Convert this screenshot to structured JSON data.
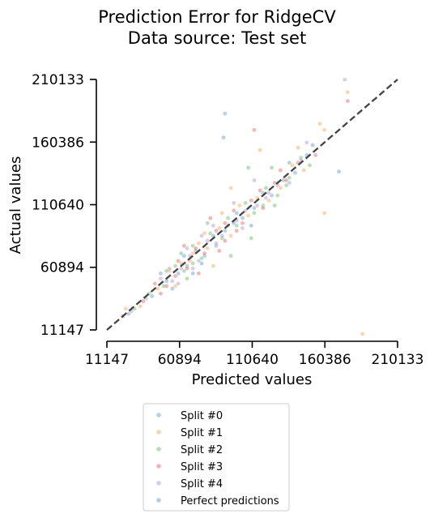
{
  "chart_data": {
    "type": "scatter",
    "title": [
      "Prediction Error for RidgeCV",
      "Data source: Test set"
    ],
    "xlabel": "Predicted values",
    "ylabel": "Actual values",
    "xlim": [
      11147,
      210133
    ],
    "ylim": [
      11147,
      210133
    ],
    "xticks": [
      "11147",
      "60894",
      "110640",
      "160386",
      "210133"
    ],
    "yticks": [
      "11147",
      "60894",
      "110640",
      "160386",
      "210133"
    ],
    "grid": false,
    "legend_position": "below",
    "series": [
      {
        "name": "Split #0",
        "color": "#1f77b4",
        "points": [
          [
            26000,
            24000
          ],
          [
            42000,
            38000
          ],
          [
            52000,
            50000
          ],
          [
            60000,
            56000
          ],
          [
            66000,
            62000
          ],
          [
            72000,
            74000
          ],
          [
            78000,
            70000
          ],
          [
            84000,
            86000
          ],
          [
            92000,
            90000
          ],
          [
            98000,
            96000
          ],
          [
            104000,
            100000
          ],
          [
            112000,
            108000
          ],
          [
            118000,
            120000
          ],
          [
            124000,
            118000
          ],
          [
            132000,
            130000
          ],
          [
            140000,
            136000
          ],
          [
            148000,
            150000
          ],
          [
            92000,
            183000
          ],
          [
            91000,
            164000
          ],
          [
            152000,
            158000
          ],
          [
            170000,
            137000
          ],
          [
            56000,
            44000
          ],
          [
            64000,
            70000
          ],
          [
            70000,
            56000
          ],
          [
            86000,
            78000
          ],
          [
            100000,
            104000
          ],
          [
            76000,
            64000
          ],
          [
            48000,
            56000
          ],
          [
            110000,
            94000
          ],
          [
            136000,
            144000
          ]
        ]
      },
      {
        "name": "Split #1",
        "color": "#ff7f0e",
        "points": [
          [
            24000,
            28000
          ],
          [
            34000,
            30000
          ],
          [
            46000,
            44000
          ],
          [
            54000,
            58000
          ],
          [
            62000,
            64000
          ],
          [
            68000,
            66000
          ],
          [
            74000,
            80000
          ],
          [
            80000,
            76000
          ],
          [
            88000,
            92000
          ],
          [
            96000,
            86000
          ],
          [
            102000,
            110000
          ],
          [
            108000,
            102000
          ],
          [
            114000,
            116000
          ],
          [
            122000,
            114000
          ],
          [
            130000,
            124000
          ],
          [
            138000,
            142000
          ],
          [
            146000,
            138000
          ],
          [
            160000,
            170000
          ],
          [
            176000,
            200000
          ],
          [
            157000,
            175000
          ],
          [
            160000,
            104000
          ],
          [
            186000,
            8000
          ],
          [
            90000,
            104000
          ],
          [
            116000,
            154000
          ],
          [
            58000,
            46000
          ],
          [
            70000,
            72000
          ],
          [
            84000,
            62000
          ],
          [
            96000,
            124000
          ],
          [
            142000,
            156000
          ],
          [
            78000,
            88000
          ]
        ]
      },
      {
        "name": "Split #2",
        "color": "#2ca02c",
        "points": [
          [
            30000,
            28000
          ],
          [
            40000,
            40000
          ],
          [
            50000,
            46000
          ],
          [
            58000,
            62000
          ],
          [
            64000,
            58000
          ],
          [
            70000,
            78000
          ],
          [
            76000,
            68000
          ],
          [
            82000,
            88000
          ],
          [
            90000,
            84000
          ],
          [
            94000,
            100000
          ],
          [
            100000,
            94000
          ],
          [
            106000,
            112000
          ],
          [
            112000,
            104000
          ],
          [
            120000,
            124000
          ],
          [
            128000,
            118000
          ],
          [
            136000,
            132000
          ],
          [
            144000,
            148000
          ],
          [
            150000,
            142000
          ],
          [
            126000,
            110000
          ],
          [
            108000,
            140000
          ],
          [
            96000,
            70000
          ],
          [
            52000,
            58000
          ],
          [
            66000,
            52000
          ],
          [
            80000,
            96000
          ],
          [
            134000,
            126000
          ],
          [
            70000,
            64000
          ],
          [
            118000,
            110000
          ],
          [
            62000,
            72000
          ],
          [
            124000,
            140000
          ],
          [
            110000,
            84000
          ]
        ]
      },
      {
        "name": "Split #3",
        "color": "#d62728",
        "points": [
          [
            22000,
            22000
          ],
          [
            36000,
            34000
          ],
          [
            44000,
            48000
          ],
          [
            52000,
            46000
          ],
          [
            60000,
            66000
          ],
          [
            66000,
            60000
          ],
          [
            72000,
            76000
          ],
          [
            78000,
            72000
          ],
          [
            86000,
            90000
          ],
          [
            92000,
            82000
          ],
          [
            98000,
            106000
          ],
          [
            104000,
            96000
          ],
          [
            110000,
            114000
          ],
          [
            118000,
            108000
          ],
          [
            126000,
            128000
          ],
          [
            134000,
            130000
          ],
          [
            142000,
            144000
          ],
          [
            154000,
            150000
          ],
          [
            176000,
            193000
          ],
          [
            112000,
            170000
          ],
          [
            74000,
            56000
          ],
          [
            82000,
            100000
          ],
          [
            58000,
            54000
          ],
          [
            92000,
            96000
          ],
          [
            64000,
            78000
          ],
          [
            100000,
            90000
          ],
          [
            48000,
            40000
          ],
          [
            88000,
            74000
          ],
          [
            116000,
            122000
          ],
          [
            130000,
            138000
          ]
        ]
      },
      {
        "name": "Split #4",
        "color": "#9467bd",
        "points": [
          [
            28000,
            26000
          ],
          [
            38000,
            36000
          ],
          [
            48000,
            52000
          ],
          [
            56000,
            50000
          ],
          [
            62000,
            60000
          ],
          [
            68000,
            70000
          ],
          [
            74000,
            66000
          ],
          [
            80000,
            82000
          ],
          [
            86000,
            80000
          ],
          [
            94000,
            94000
          ],
          [
            100000,
            98000
          ],
          [
            106000,
            106000
          ],
          [
            114000,
            110000
          ],
          [
            120000,
            116000
          ],
          [
            128000,
            126000
          ],
          [
            136000,
            128000
          ],
          [
            144000,
            146000
          ],
          [
            148000,
            160000
          ],
          [
            112000,
            130000
          ],
          [
            174000,
            210000
          ],
          [
            54000,
            60000
          ],
          [
            66000,
            76000
          ],
          [
            70000,
            60000
          ],
          [
            84000,
            94000
          ],
          [
            90000,
            86000
          ],
          [
            98000,
            112000
          ],
          [
            60000,
            48000
          ],
          [
            76000,
            86000
          ],
          [
            122000,
            120000
          ],
          [
            104000,
            92000
          ]
        ]
      }
    ],
    "perfect_predictions": {
      "name": "Perfect predictions",
      "color": "#1f77b4",
      "from": [
        11147,
        11147
      ],
      "to": [
        210133,
        210133
      ]
    }
  }
}
